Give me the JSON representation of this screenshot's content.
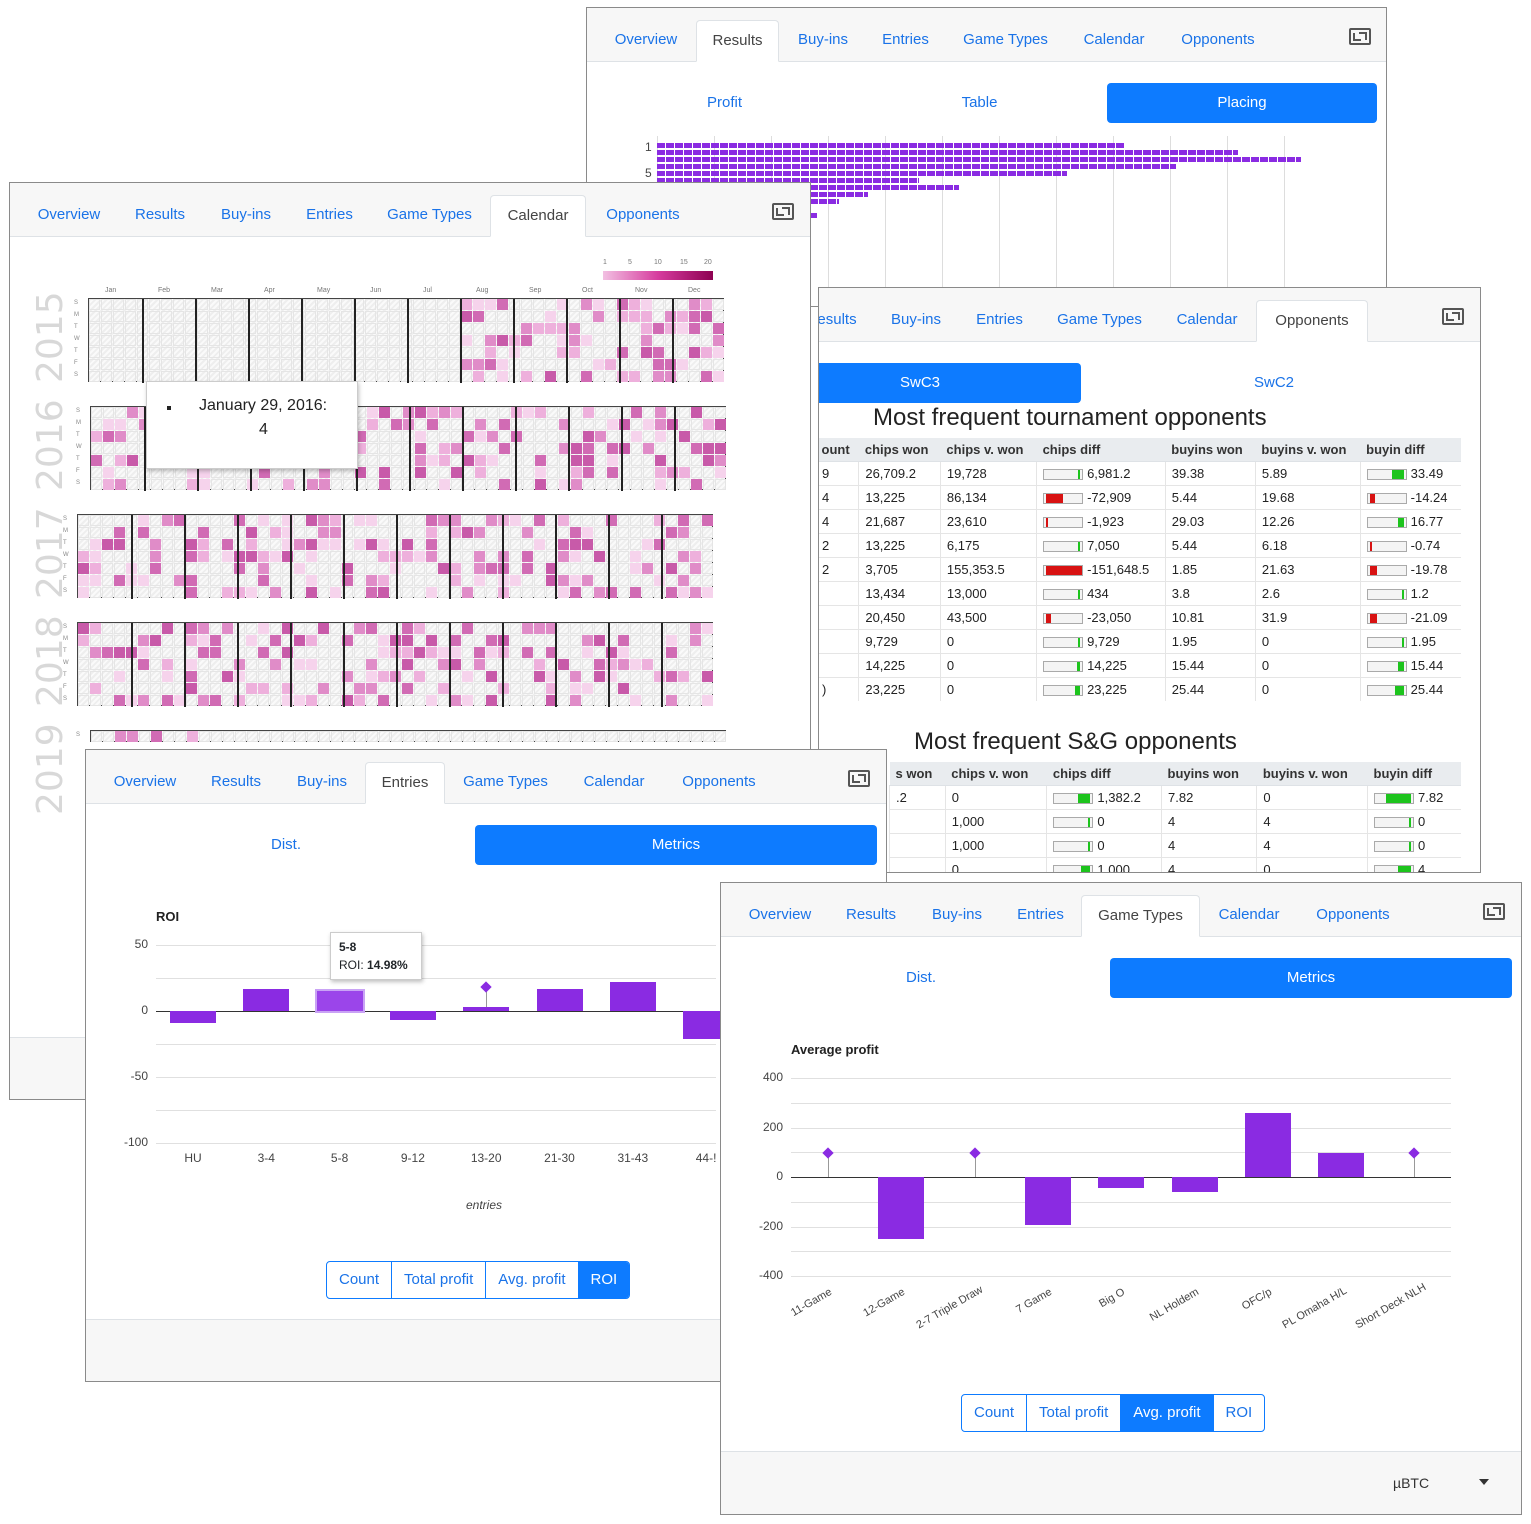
{
  "nav_tabs": [
    "Overview",
    "Results",
    "Buy-ins",
    "Entries",
    "Game Types",
    "Calendar",
    "Opponents"
  ],
  "results_panel": {
    "active_tab": "Results",
    "subtabs": [
      "Profit",
      "Table",
      "Placing"
    ],
    "active_subtab": "Placing",
    "y_labels": [
      "1",
      "5"
    ],
    "bars": [
      8.2,
      10.2,
      11.3,
      9.1,
      7.2,
      4.6,
      5.3,
      3.7,
      3.2,
      2.5,
      2.8,
      2.1,
      1.2,
      0.7
    ]
  },
  "calendar_panel": {
    "active_tab": "Calendar",
    "legend": [
      "1",
      "5",
      "10",
      "15",
      "20"
    ],
    "legend_colors": [
      "#f0b3dc",
      "#d03d9a",
      "#8e0152"
    ],
    "months": [
      "Jan",
      "Feb",
      "Mar",
      "Apr",
      "May",
      "Jun",
      "Jul",
      "Aug",
      "Sep",
      "Oct",
      "Nov",
      "Dec"
    ],
    "years": [
      "2015",
      "2016",
      "2017",
      "2018",
      "2019"
    ],
    "day_letters": [
      "S",
      "M",
      "T",
      "W",
      "T",
      "F",
      "S"
    ],
    "tooltip": {
      "date": "January 29, 2016:",
      "value": "4"
    }
  },
  "opponents_panel": {
    "active_tab": "Opponents",
    "cut_tab": "esults",
    "subtabs": [
      "SwC3",
      "SwC2"
    ],
    "active_subtab": "SwC3",
    "tournament": {
      "title": "Most frequent tournament opponents",
      "headers": [
        "ount",
        "chips won",
        "chips v. won",
        "chips diff",
        "buyins won",
        "buyins v. won",
        "buyin diff"
      ],
      "rows": [
        {
          "c": "9",
          "chips_won": "26,709.2",
          "chips_v": "19,728",
          "chips_diff": "6,981.2",
          "cd": 0.04,
          "buyins_won": "39.38",
          "buyins_v": "5.89",
          "buyin_diff": "33.49",
          "bd": 0.33
        },
        {
          "c": "4",
          "chips_won": "13,225",
          "chips_v": "86,134",
          "chips_diff": "-72,909",
          "cd": -0.48,
          "buyins_won": "5.44",
          "buyins_v": "19.68",
          "buyin_diff": "-14.24",
          "bd": -0.14
        },
        {
          "c": "4",
          "chips_won": "21,687",
          "chips_v": "23,610",
          "chips_diff": "-1,923",
          "cd": -0.01,
          "buyins_won": "29.03",
          "buyins_v": "12.26",
          "buyin_diff": "16.77",
          "bd": 0.17
        },
        {
          "c": "2",
          "chips_won": "13,225",
          "chips_v": "6,175",
          "chips_diff": "7,050",
          "cd": 0.05,
          "buyins_won": "5.44",
          "buyins_v": "6.18",
          "buyin_diff": "-0.74",
          "bd": -0.01
        },
        {
          "c": "2",
          "chips_won": "3,705",
          "chips_v": "155,353.5",
          "chips_diff": "-151,648.5",
          "cd": -1.0,
          "buyins_won": "1.85",
          "buyins_v": "21.63",
          "buyin_diff": "-19.78",
          "bd": -0.2
        },
        {
          "c": "",
          "chips_won": "13,434",
          "chips_v": "13,000",
          "chips_diff": "434",
          "cd": 0.003,
          "buyins_won": "3.8",
          "buyins_v": "2.6",
          "buyin_diff": "1.2",
          "bd": 0.012
        },
        {
          "c": "",
          "chips_won": "20,450",
          "chips_v": "43,500",
          "chips_diff": "-23,050",
          "cd": -0.15,
          "buyins_won": "10.81",
          "buyins_v": "31.9",
          "buyin_diff": "-21.09",
          "bd": -0.21
        },
        {
          "c": "",
          "chips_won": "9,729",
          "chips_v": "0",
          "chips_diff": "9,729",
          "cd": 0.06,
          "buyins_won": "1.95",
          "buyins_v": "0",
          "buyin_diff": "1.95",
          "bd": 0.02
        },
        {
          "c": "",
          "chips_won": "14,225",
          "chips_v": "0",
          "chips_diff": "14,225",
          "cd": 0.09,
          "buyins_won": "15.44",
          "buyins_v": "0",
          "buyin_diff": "15.44",
          "bd": 0.15
        },
        {
          "c": ")",
          "chips_won": "23,225",
          "chips_v": "0",
          "chips_diff": "23,225",
          "cd": 0.15,
          "buyins_won": "25.44",
          "buyins_v": "0",
          "buyin_diff": "25.44",
          "bd": 0.25
        }
      ]
    },
    "sng": {
      "title": "Most frequent S&G opponents",
      "headers": [
        "s won",
        "chips v. won",
        "chips diff",
        "buyins won",
        "buyins v. won",
        "buyin diff"
      ],
      "rows": [
        {
          "c": ".2",
          "chips_v": "0",
          "chips_diff": "1,382.2",
          "cd": 0.35,
          "buyins_won": "7.82",
          "buyins_v": "0",
          "buyin_diff": "7.82",
          "bd": 0.7
        },
        {
          "c": "",
          "chips_v": "1,000",
          "chips_diff": "0",
          "cd": 0.0,
          "buyins_won": "4",
          "buyins_v": "4",
          "buyin_diff": "0",
          "bd": 0.0
        },
        {
          "c": "",
          "chips_v": "1,000",
          "chips_diff": "0",
          "cd": 0.0,
          "buyins_won": "4",
          "buyins_v": "4",
          "buyin_diff": "0",
          "bd": 0.0
        },
        {
          "c": "",
          "chips_v": "0",
          "chips_diff": "1,000",
          "cd": 0.25,
          "buyins_won": "4",
          "buyins_v": "0",
          "buyin_diff": "4",
          "bd": 0.36
        }
      ]
    }
  },
  "entries_panel": {
    "active_tab": "Entries",
    "subtabs": [
      "Dist.",
      "Metrics"
    ],
    "active_subtab": "Metrics",
    "buttons": [
      "Count",
      "Total profit",
      "Avg. profit",
      "ROI"
    ],
    "active_button": "ROI",
    "tooltip": {
      "title": "5-8",
      "label": "ROI:",
      "value": "14.98%"
    }
  },
  "gametypes_panel": {
    "active_tab": "Game Types",
    "subtabs": [
      "Dist.",
      "Metrics"
    ],
    "active_subtab": "Metrics",
    "buttons": [
      "Count",
      "Total profit",
      "Avg. profit",
      "ROI"
    ],
    "active_button": "Avg. profit",
    "currency": "µBTC"
  },
  "chart_data": [
    {
      "type": "bar",
      "title": "ROI",
      "xlabel": "entries",
      "ylabel": "",
      "categories": [
        "HU",
        "3-4",
        "5-8",
        "9-12",
        "13-20",
        "21-30",
        "31-43",
        "44-!"
      ],
      "values": [
        -9,
        17,
        14.98,
        -7,
        3,
        17,
        22,
        -21
      ],
      "markers": [
        "13-20"
      ],
      "ylim": [
        -100,
        50
      ],
      "yticks": [
        "50",
        "0",
        "-50",
        "-100"
      ]
    },
    {
      "type": "bar",
      "title": "Average profit",
      "xlabel": "",
      "ylabel": "",
      "categories": [
        "11-Game",
        "12-Game",
        "2-7 Triple Draw",
        "7 Game",
        "Big O",
        "NL Holdem",
        "OFC/p",
        "PL Omaha H/L",
        "Short Deck NLH"
      ],
      "values": [
        0,
        -250,
        0,
        -195,
        -45,
        -62,
        258,
        95,
        0
      ],
      "markers": [
        "11-Game",
        "2-7 Triple Draw",
        "Short Deck NLH"
      ],
      "ylim": [
        -400,
        400
      ],
      "yticks": [
        "400",
        "200",
        "0",
        "-200",
        "-400"
      ]
    }
  ]
}
